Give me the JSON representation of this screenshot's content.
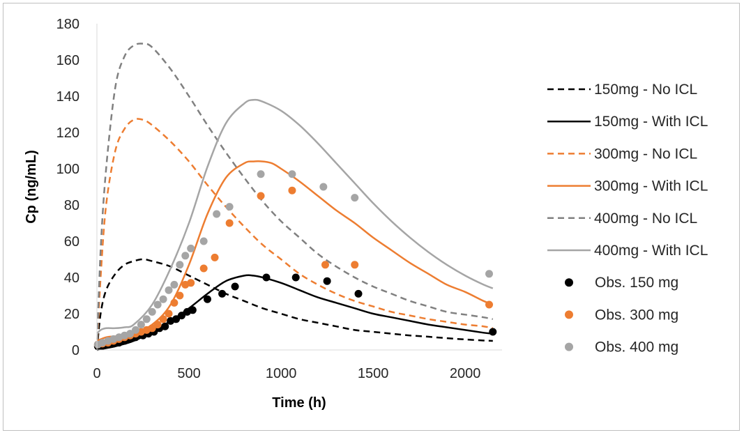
{
  "chart_data": {
    "type": "line",
    "xlabel": "Time (h)",
    "ylabel": "Cp  (ng/mL)",
    "xlim": [
      0,
      2200
    ],
    "ylim": [
      0,
      180
    ],
    "x_ticks": [
      0,
      500,
      1000,
      1500,
      2000
    ],
    "y_ticks": [
      0,
      20,
      40,
      60,
      80,
      100,
      120,
      140,
      160,
      180
    ],
    "grid": false,
    "legend_position": "right",
    "series": [
      {
        "name": "150mg - No ICL",
        "color": "#000000",
        "style": "dashed",
        "kind": "line",
        "x": [
          0,
          20,
          50,
          100,
          150,
          200,
          250,
          300,
          400,
          500,
          600,
          700,
          800,
          900,
          1000,
          1100,
          1200,
          1300,
          1400,
          1500,
          1600,
          1700,
          1800,
          1900,
          2000,
          2100,
          2150
        ],
        "y": [
          0,
          20,
          33,
          42,
          47,
          49,
          50,
          49,
          46,
          41,
          36,
          31,
          27,
          23,
          20,
          17,
          15,
          13,
          11,
          10,
          9,
          8,
          7.3,
          6.5,
          5.8,
          5.2,
          5
        ]
      },
      {
        "name": "150mg - With ICL",
        "color": "#000000",
        "style": "solid",
        "kind": "line",
        "x": [
          0,
          50,
          100,
          200,
          300,
          400,
          500,
          600,
          700,
          800,
          850,
          900,
          1000,
          1100,
          1200,
          1300,
          1400,
          1500,
          1600,
          1700,
          1800,
          1900,
          2000,
          2100,
          2150
        ],
        "y": [
          0,
          1,
          2,
          5,
          10,
          16,
          23,
          31,
          38,
          41,
          41,
          40,
          37,
          33,
          29,
          26,
          23,
          20,
          18,
          16,
          14,
          12.5,
          11,
          9.5,
          9
        ]
      },
      {
        "name": "300mg - No ICL",
        "color": "#ED7D31",
        "style": "dashed",
        "kind": "line",
        "x": [
          0,
          20,
          50,
          100,
          150,
          200,
          250,
          300,
          400,
          500,
          600,
          700,
          800,
          900,
          1000,
          1100,
          1200,
          1300,
          1400,
          1500,
          1600,
          1700,
          1800,
          1900,
          2000,
          2100,
          2150
        ],
        "y": [
          0,
          40,
          80,
          110,
          122,
          127,
          127,
          124,
          115,
          104,
          91,
          79,
          68,
          58,
          50,
          42,
          36,
          31,
          27,
          24,
          21,
          19,
          17,
          15.5,
          14,
          13,
          12
        ]
      },
      {
        "name": "300mg - With ICL",
        "color": "#ED7D31",
        "style": "solid",
        "kind": "line",
        "x": [
          0,
          50,
          100,
          150,
          200,
          300,
          400,
          500,
          600,
          700,
          800,
          850,
          900,
          950,
          1000,
          1100,
          1200,
          1300,
          1400,
          1500,
          1600,
          1700,
          1800,
          1900,
          2000,
          2100,
          2150
        ],
        "y": [
          5,
          7,
          7.5,
          8,
          9,
          14,
          25,
          47,
          75,
          95,
          103,
          104,
          104,
          103,
          100,
          93,
          85,
          77,
          70,
          62,
          55,
          48,
          42,
          36,
          32,
          27,
          25
        ]
      },
      {
        "name": "400mg - No ICL",
        "color": "#808080",
        "style": "dashed",
        "kind": "line",
        "x": [
          0,
          20,
          50,
          100,
          150,
          200,
          250,
          300,
          400,
          500,
          600,
          700,
          800,
          900,
          1000,
          1100,
          1200,
          1300,
          1400,
          1500,
          1600,
          1700,
          1800,
          1900,
          2000,
          2100,
          2150
        ],
        "y": [
          0,
          55,
          100,
          145,
          162,
          168,
          169,
          167,
          155,
          140,
          124,
          109,
          95,
          82,
          71,
          62,
          53,
          46,
          40,
          35,
          31,
          27,
          24,
          21,
          19.5,
          18,
          17
        ]
      },
      {
        "name": "400mg - With ICL",
        "color": "#A5A5A5",
        "style": "solid",
        "kind": "line",
        "x": [
          0,
          20,
          50,
          100,
          150,
          200,
          300,
          400,
          500,
          600,
          700,
          800,
          850,
          900,
          1000,
          1100,
          1200,
          1300,
          1400,
          1500,
          1600,
          1700,
          1800,
          1900,
          2000,
          2100,
          2150
        ],
        "y": [
          9,
          11,
          12,
          12,
          12.5,
          14,
          25,
          45,
          70,
          101,
          125,
          136,
          138,
          137,
          132,
          124,
          114,
          103,
          92,
          81,
          71,
          62,
          54,
          47,
          41,
          36,
          34
        ]
      },
      {
        "name": "Obs. 150 mg",
        "color": "#000000",
        "kind": "scatter",
        "x": [
          5,
          30,
          60,
          90,
          120,
          150,
          180,
          210,
          250,
          280,
          310,
          340,
          370,
          400,
          430,
          460,
          490,
          520,
          600,
          680,
          750,
          920,
          1080,
          1250,
          1420,
          2150
        ],
        "y": [
          2,
          2.5,
          3,
          3.5,
          4,
          5,
          6,
          7,
          8,
          9,
          10,
          12,
          13,
          16,
          17,
          19,
          21,
          22,
          28,
          31,
          35,
          40,
          40,
          38,
          31,
          10
        ]
      },
      {
        "name": "Obs. 300 mg",
        "color": "#ED7D31",
        "kind": "scatter",
        "x": [
          5,
          30,
          60,
          90,
          120,
          150,
          180,
          210,
          240,
          270,
          300,
          330,
          360,
          390,
          420,
          450,
          480,
          510,
          580,
          640,
          720,
          890,
          1060,
          1240,
          1400,
          2130
        ],
        "y": [
          3,
          3.5,
          4,
          5,
          6,
          7,
          8,
          9,
          10,
          11,
          12,
          14,
          17,
          20,
          26,
          30,
          36,
          37,
          45,
          51,
          70,
          85,
          88,
          47,
          47,
          25
        ]
      },
      {
        "name": "Obs. 400 mg",
        "color": "#A5A5A5",
        "kind": "scatter",
        "x": [
          5,
          30,
          60,
          90,
          120,
          150,
          180,
          210,
          240,
          270,
          300,
          330,
          360,
          390,
          420,
          450,
          480,
          510,
          580,
          650,
          720,
          890,
          1060,
          1230,
          1400,
          2130
        ],
        "y": [
          3,
          4,
          5,
          6,
          7,
          8,
          9,
          11,
          14,
          17,
          21,
          25,
          28,
          33,
          36,
          47,
          52,
          56,
          60,
          75,
          79,
          97,
          97,
          90,
          84,
          42
        ]
      }
    ]
  }
}
